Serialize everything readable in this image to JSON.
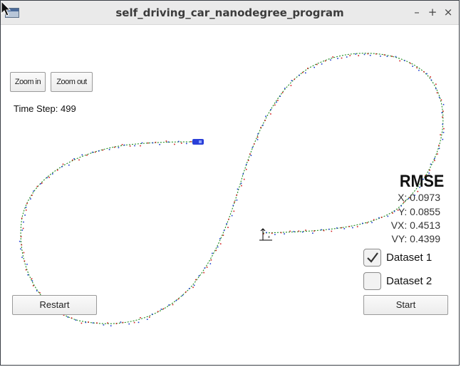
{
  "window": {
    "title": "self_driving_car_nanodegree_program",
    "controls": [
      "–",
      "+",
      "×"
    ]
  },
  "toolbar": {
    "zoom_in_label": "Zoom in",
    "zoom_out_label": "Zoom out"
  },
  "sim": {
    "time_step_label": "Time Step: 499"
  },
  "rmse": {
    "title": "RMSE",
    "x": "X: 0.0973",
    "y": "Y: 0.0855",
    "vx": "VX: 0.4513",
    "vy": "VY: 0.4399"
  },
  "datasets": [
    {
      "label": "Dataset 1",
      "checked": true
    },
    {
      "label": "Dataset 2",
      "checked": false
    }
  ],
  "buttons": {
    "restart_label": "Restart",
    "start_label": "Start"
  },
  "colors": {
    "track": "#1e8c1e",
    "lidar": "#d01a1a",
    "radar": "#1a3ad0",
    "car": "#2a3fd8"
  },
  "icons": {
    "app": "window-icon",
    "cursor": "pointer-icon"
  }
}
